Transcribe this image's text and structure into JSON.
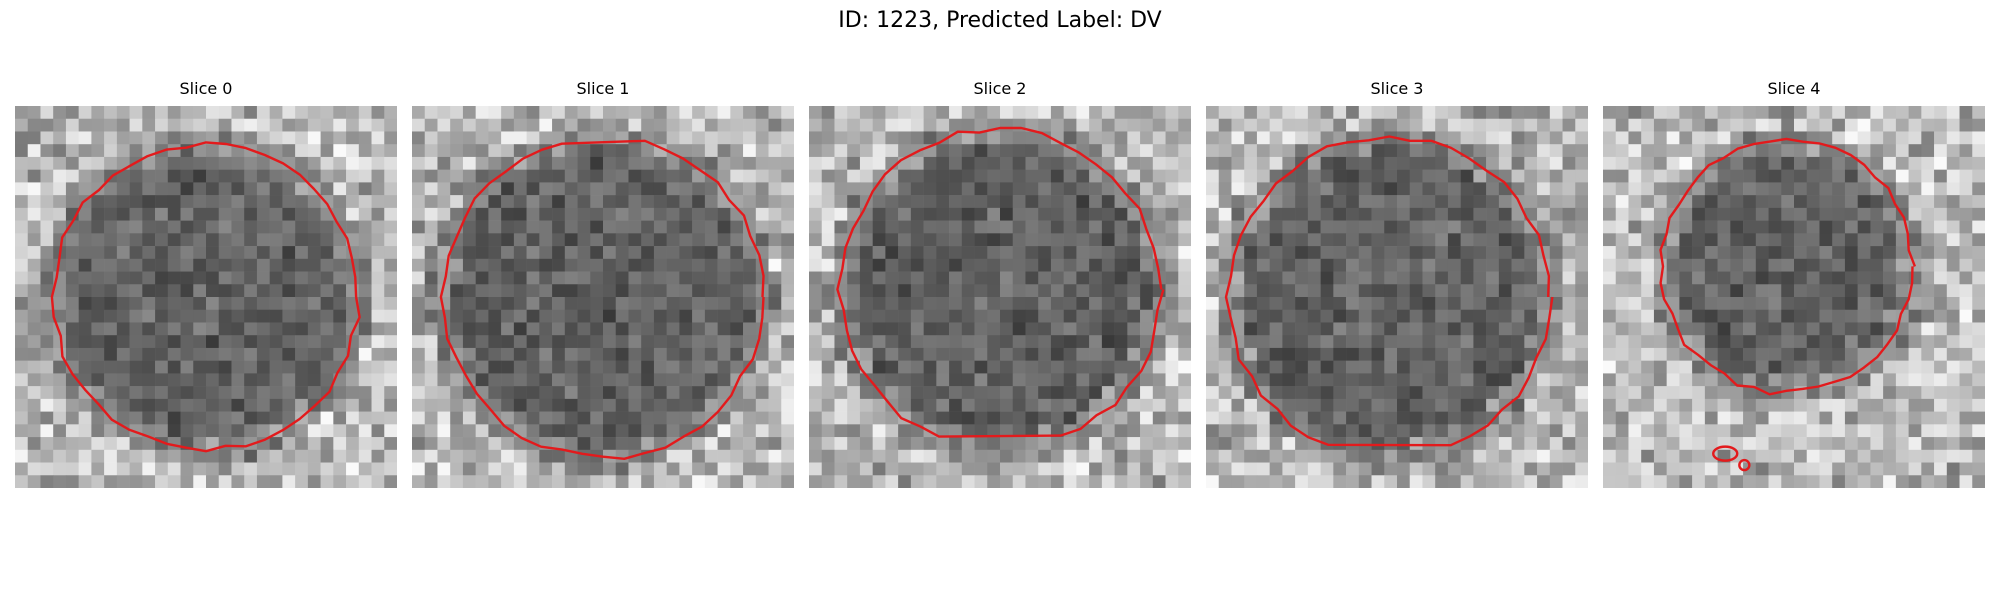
{
  "figure": {
    "title": "ID: 1223, Predicted Label: DV"
  },
  "panels": [
    {
      "title": "Slice 0",
      "seed": 11,
      "center": [
        0.5,
        0.5
      ],
      "radius": 0.4,
      "contour": "closed"
    },
    {
      "title": "Slice 1",
      "seed": 29,
      "center": [
        0.5,
        0.5
      ],
      "radius": 0.42,
      "contour": "open_top"
    },
    {
      "title": "Slice 2",
      "seed": 47,
      "center": [
        0.5,
        0.48
      ],
      "radius": 0.42,
      "contour": "open_bottom"
    },
    {
      "title": "Slice 3",
      "seed": 83,
      "center": [
        0.48,
        0.5
      ],
      "radius": 0.42,
      "contour": "open_bottom"
    },
    {
      "title": "Slice 4",
      "seed": 97,
      "center": [
        0.48,
        0.42
      ],
      "radius": 0.33,
      "contour": "closed_small"
    }
  ],
  "colors": {
    "contour": "#e31a1c",
    "background": "#ffffff"
  },
  "grid_cells": 30
}
